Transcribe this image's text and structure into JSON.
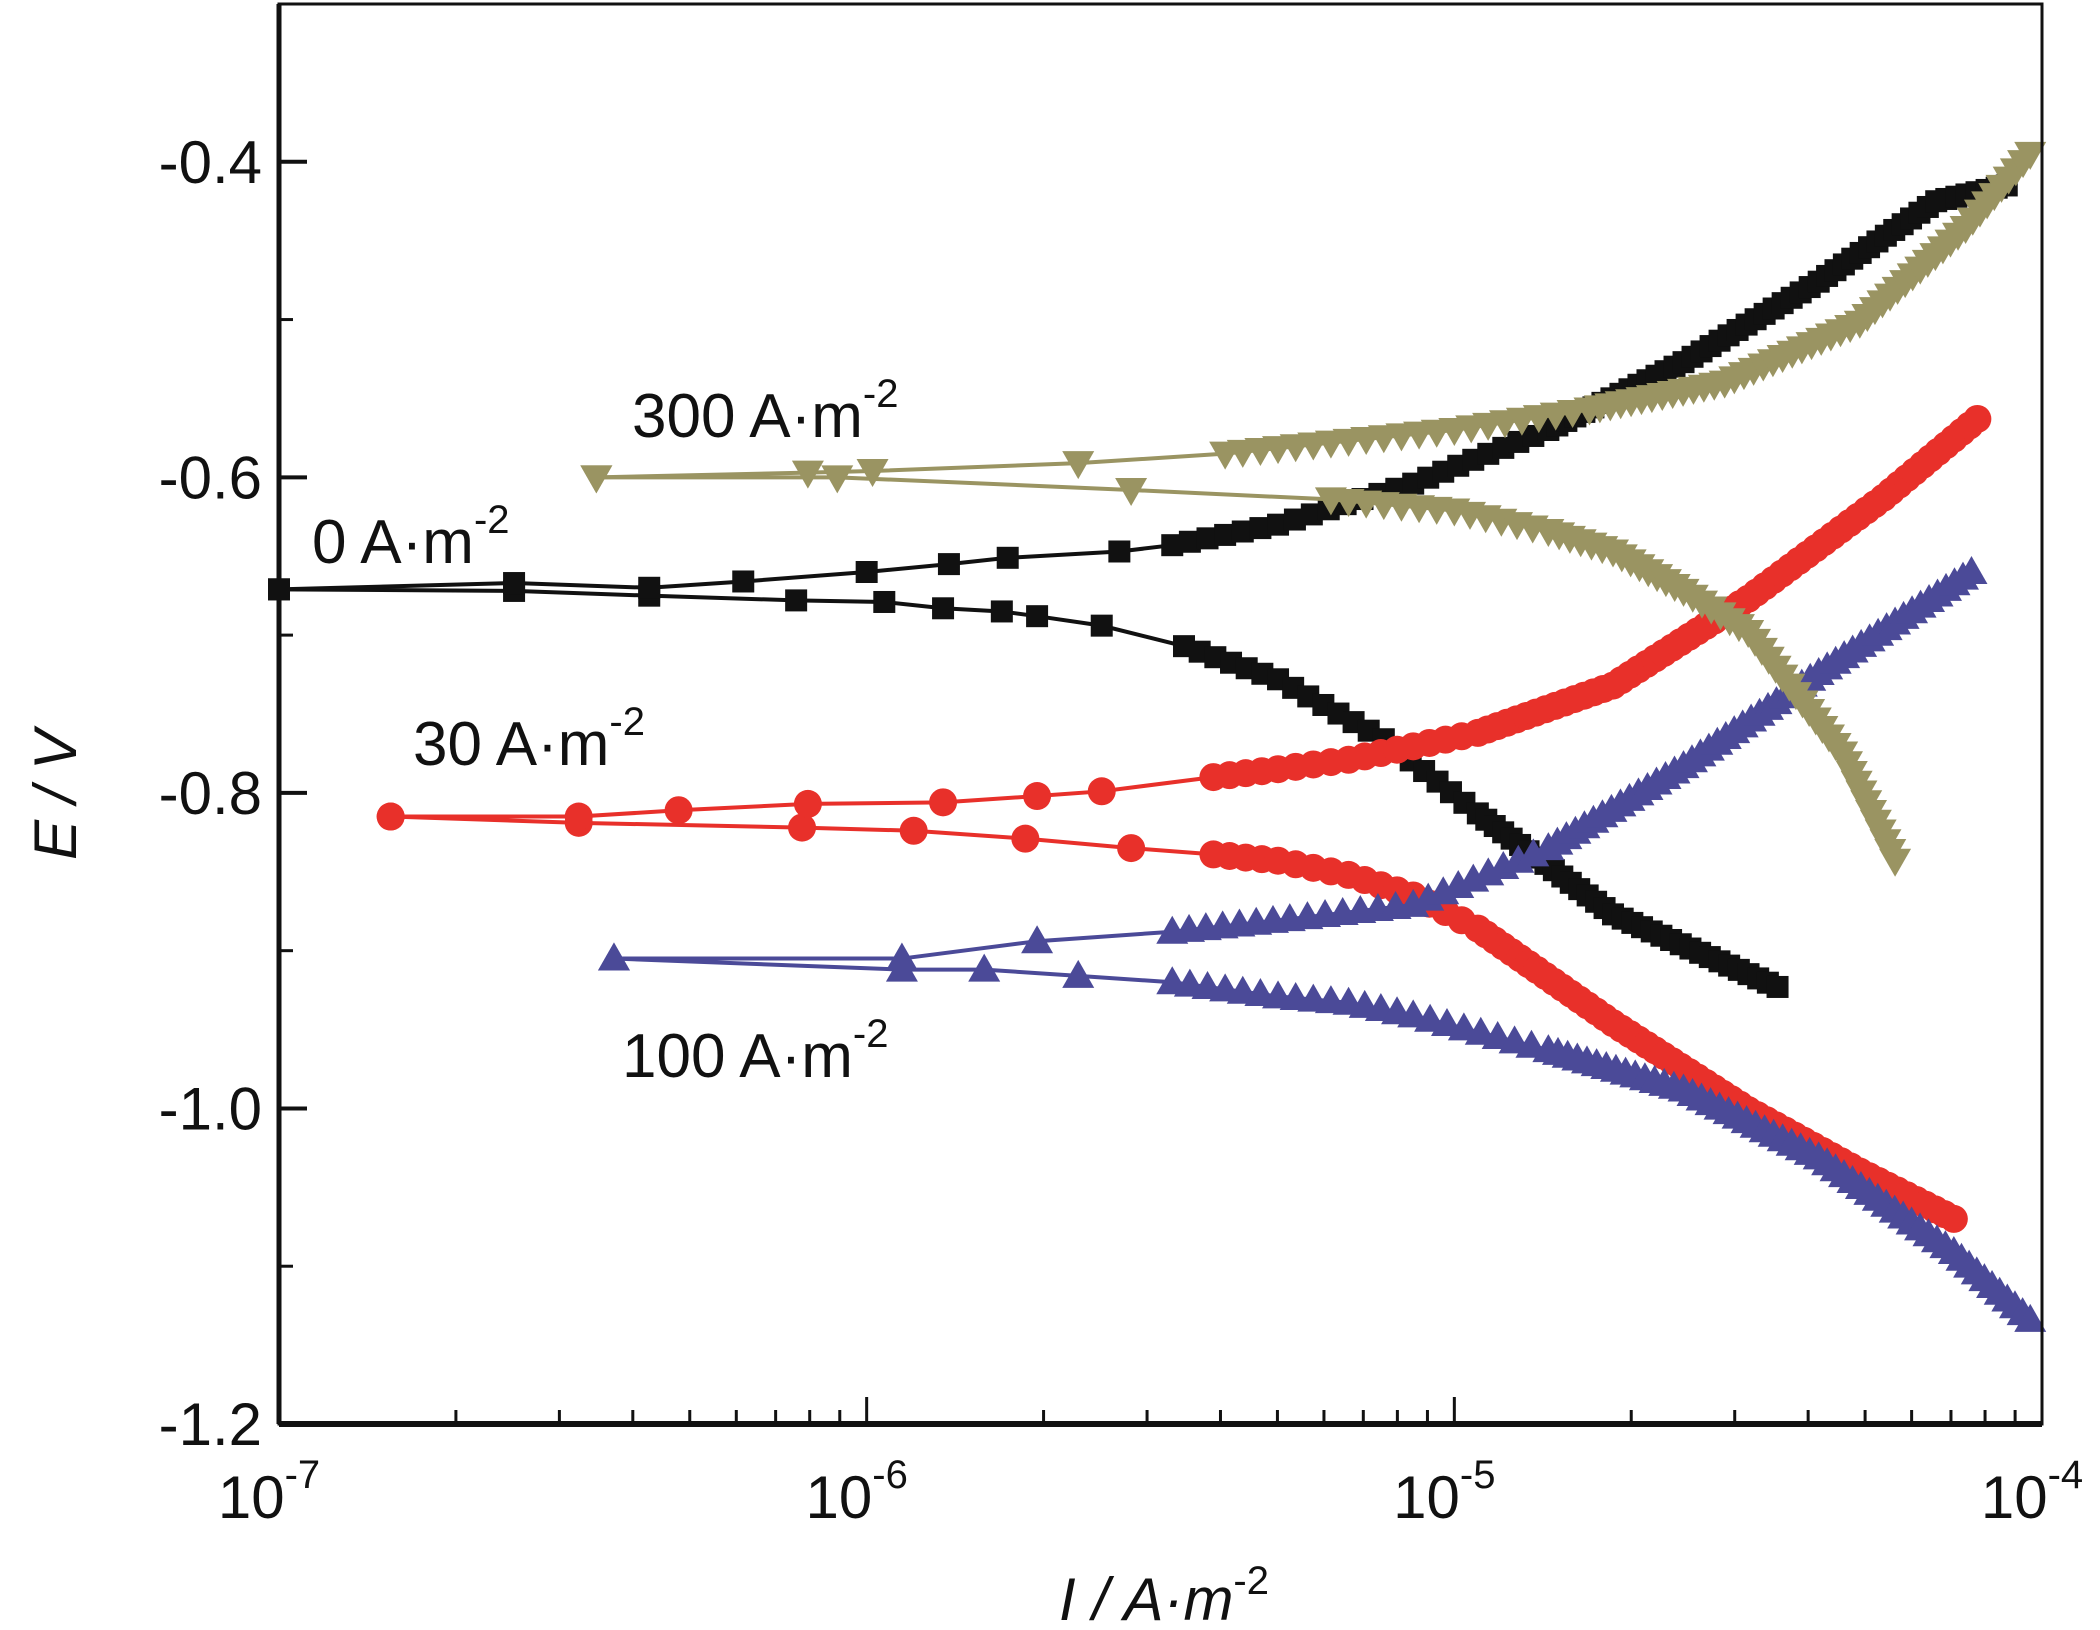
{
  "chart_data": {
    "type": "scatter",
    "title": "",
    "xlabel": "I / A·m",
    "xlabel_sup": "-2",
    "ylabel": "E / V",
    "xscale": "log",
    "xlim": [
      1e-07,
      0.0001
    ],
    "ylim": [
      -1.2,
      -0.3
    ],
    "grid": false,
    "x_ticks": [
      {
        "base": "10",
        "exp": "-7",
        "value": -7
      },
      {
        "base": "10",
        "exp": "-6",
        "value": -6
      },
      {
        "base": "10",
        "exp": "-5",
        "value": -5
      },
      {
        "base": "10",
        "exp": "-4",
        "value": -4
      }
    ],
    "y_ticks": [
      "-0.4",
      "-0.6",
      "-0.8",
      "-1.0",
      "-1.2"
    ],
    "y_tick_values": [
      -0.4,
      -0.6,
      -0.8,
      -1.0,
      -1.2
    ],
    "y_minor_ticks": [
      -0.3,
      -0.5,
      -0.7,
      -0.9,
      -1.1
    ],
    "x_data_units": "log10(I / A·m^-2)",
    "series": [
      {
        "name": "0 A·m-2",
        "label": "0 A·m",
        "label_sup": "-2",
        "color": "#111111",
        "marker": "square",
        "anodic": [
          [
            -7.0,
            -0.671
          ],
          [
            -6.6,
            -0.667
          ],
          [
            -6.37,
            -0.67
          ],
          [
            -6.21,
            -0.666
          ],
          [
            -6.0,
            -0.66
          ],
          [
            -5.86,
            -0.655
          ],
          [
            -5.76,
            -0.651
          ],
          [
            -5.57,
            -0.647
          ],
          [
            -5.48,
            -0.643
          ],
          [
            -5.3,
            -0.63
          ],
          [
            -5.07,
            -0.604
          ],
          [
            -4.84,
            -0.57
          ],
          [
            -4.61,
            -0.527
          ],
          [
            -4.38,
            -0.476
          ],
          [
            -4.18,
            -0.425
          ],
          [
            -4.06,
            -0.415
          ]
        ],
        "cathodic": [
          [
            -7.0,
            -0.671
          ],
          [
            -6.6,
            -0.672
          ],
          [
            -6.37,
            -0.675
          ],
          [
            -6.12,
            -0.678
          ],
          [
            -5.97,
            -0.679
          ],
          [
            -5.87,
            -0.683
          ],
          [
            -5.77,
            -0.685
          ],
          [
            -5.71,
            -0.688
          ],
          [
            -5.6,
            -0.694
          ],
          [
            -5.46,
            -0.707
          ],
          [
            -5.3,
            -0.728
          ],
          [
            -5.12,
            -0.766
          ],
          [
            -4.96,
            -0.813
          ],
          [
            -4.73,
            -0.877
          ],
          [
            -4.45,
            -0.923
          ]
        ]
      },
      {
        "name": "30 A·m-2",
        "label": "30 A·m",
        "label_sup": "-2",
        "color": "#e8302a",
        "marker": "circle",
        "anodic": [
          [
            -6.81,
            -0.815
          ],
          [
            -6.49,
            -0.815
          ],
          [
            -6.32,
            -0.811
          ],
          [
            -6.1,
            -0.807
          ],
          [
            -5.87,
            -0.806
          ],
          [
            -5.71,
            -0.802
          ],
          [
            -5.6,
            -0.799
          ],
          [
            -5.41,
            -0.79
          ],
          [
            -5.3,
            -0.785
          ],
          [
            -5.18,
            -0.779
          ],
          [
            -4.96,
            -0.762
          ],
          [
            -4.73,
            -0.732
          ],
          [
            -4.5,
            -0.677
          ],
          [
            -4.27,
            -0.613
          ],
          [
            -4.11,
            -0.563
          ]
        ],
        "cathodic": [
          [
            -6.81,
            -0.815
          ],
          [
            -6.49,
            -0.819
          ],
          [
            -6.11,
            -0.822
          ],
          [
            -5.92,
            -0.824
          ],
          [
            -5.73,
            -0.829
          ],
          [
            -5.55,
            -0.835
          ],
          [
            -5.41,
            -0.839
          ],
          [
            -5.3,
            -0.843
          ],
          [
            -5.18,
            -0.852
          ],
          [
            -5.07,
            -0.865
          ],
          [
            -4.96,
            -0.886
          ],
          [
            -4.73,
            -0.946
          ],
          [
            -4.5,
            -1.001
          ],
          [
            -4.31,
            -1.04
          ],
          [
            -4.15,
            -1.07
          ]
        ]
      },
      {
        "name": "100 A·m-2",
        "label": "100 A·m",
        "label_sup": "-2",
        "color": "#4b4a98",
        "marker": "triangle-up",
        "anodic": [
          [
            -6.43,
            -0.905
          ],
          [
            -5.94,
            -0.905
          ],
          [
            -5.71,
            -0.894
          ],
          [
            -5.48,
            -0.888
          ],
          [
            -5.28,
            -0.88
          ],
          [
            -5.07,
            -0.871
          ],
          [
            -4.84,
            -0.835
          ],
          [
            -4.61,
            -0.783
          ],
          [
            -4.38,
            -0.724
          ],
          [
            -4.12,
            -0.66
          ]
        ],
        "cathodic": [
          [
            -6.43,
            -0.905
          ],
          [
            -5.94,
            -0.912
          ],
          [
            -5.8,
            -0.912
          ],
          [
            -5.64,
            -0.916
          ],
          [
            -5.48,
            -0.92
          ],
          [
            -5.3,
            -0.929
          ],
          [
            -5.18,
            -0.933
          ],
          [
            -5.07,
            -0.941
          ],
          [
            -4.84,
            -0.963
          ],
          [
            -4.61,
            -0.988
          ],
          [
            -4.38,
            -1.031
          ],
          [
            -4.15,
            -1.091
          ],
          [
            -4.02,
            -1.134
          ]
        ]
      },
      {
        "name": "300 A·m-2",
        "label": "300 A·m",
        "label_sup": "-2",
        "color": "#9a9462",
        "marker": "triangle-down",
        "anodic": [
          [
            -6.46,
            -0.6
          ],
          [
            -6.1,
            -0.597
          ],
          [
            -5.99,
            -0.596
          ],
          [
            -5.64,
            -0.591
          ],
          [
            -5.39,
            -0.585
          ],
          [
            -5.21,
            -0.578
          ],
          [
            -5.0,
            -0.57
          ],
          [
            -4.77,
            -0.557
          ],
          [
            -4.54,
            -0.54
          ],
          [
            -4.31,
            -0.502
          ],
          [
            -4.13,
            -0.442
          ],
          [
            -4.02,
            -0.395
          ]
        ],
        "cathodic": [
          [
            -6.46,
            -0.6
          ],
          [
            -6.05,
            -0.6
          ],
          [
            -5.55,
            -0.608
          ],
          [
            -5.21,
            -0.614
          ],
          [
            -5.0,
            -0.621
          ],
          [
            -4.84,
            -0.634
          ],
          [
            -4.73,
            -0.647
          ],
          [
            -4.61,
            -0.672
          ],
          [
            -4.5,
            -0.698
          ],
          [
            -4.43,
            -0.732
          ],
          [
            -4.34,
            -0.775
          ],
          [
            -4.25,
            -0.843
          ]
        ]
      }
    ]
  }
}
